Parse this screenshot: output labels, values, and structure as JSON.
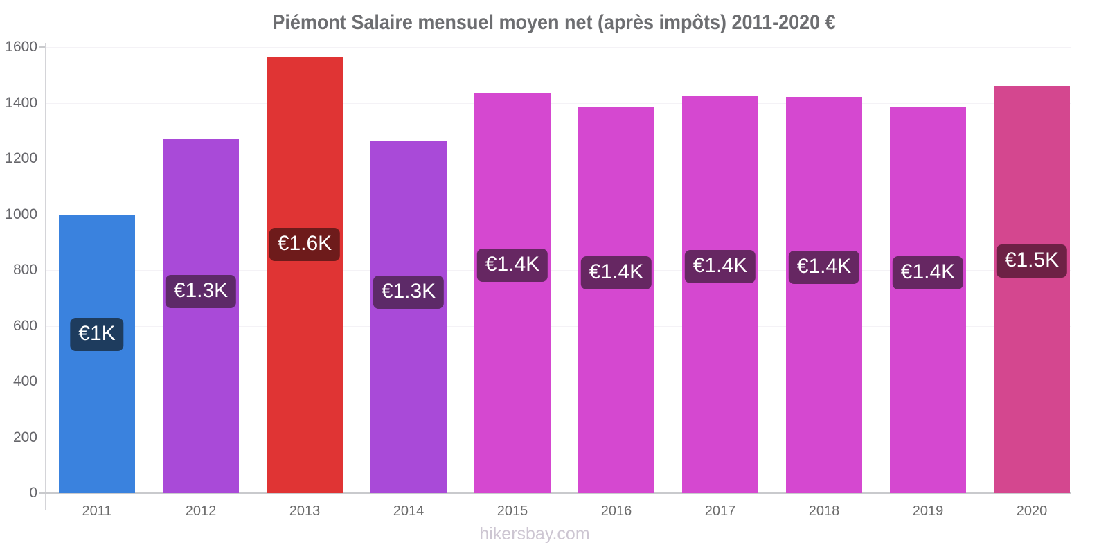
{
  "title": "Piémont Salaire mensuel moyen net (après impôts) 2011-2020 €",
  "footer": {
    "text": "hikersbay.com"
  },
  "chart_data": {
    "type": "bar",
    "title": "Piémont Salaire mensuel moyen net (après impôts) 2011-2020 €",
    "categories": [
      "2011",
      "2012",
      "2013",
      "2014",
      "2015",
      "2016",
      "2017",
      "2018",
      "2019",
      "2020"
    ],
    "values": [
      1000,
      1270,
      1565,
      1265,
      1435,
      1385,
      1425,
      1420,
      1385,
      1460
    ],
    "bar_labels": [
      "€1K",
      "€1.3K",
      "€1.6K",
      "€1.3K",
      "€1.4K",
      "€1.4K",
      "€1.4K",
      "€1.4K",
      "€1.4K",
      "€1.5K"
    ],
    "bar_colors": [
      "#3a82de",
      "#a94ad8",
      "#e03434",
      "#a94ad8",
      "#d548d0",
      "#d548d0",
      "#d548d0",
      "#d548d0",
      "#d548d0",
      "#d4478f"
    ],
    "label_bg_colors": [
      "#1e3c5e",
      "#5d2a68",
      "#6e1b1b",
      "#5d2a68",
      "#662762",
      "#662762",
      "#662762",
      "#662762",
      "#662762",
      "#6d2145"
    ],
    "xlabel": "",
    "ylabel": "",
    "ylim": [
      0,
      1600
    ],
    "yticks": [
      0,
      200,
      400,
      600,
      800,
      1000,
      1200,
      1400,
      1600
    ],
    "grid": true,
    "legend": false,
    "currency": "€",
    "axis_color": "#c9cacd",
    "tick_label_color": "#65656a",
    "title_color": "#6d6e71",
    "watermark_color": "#cdc6d2"
  }
}
